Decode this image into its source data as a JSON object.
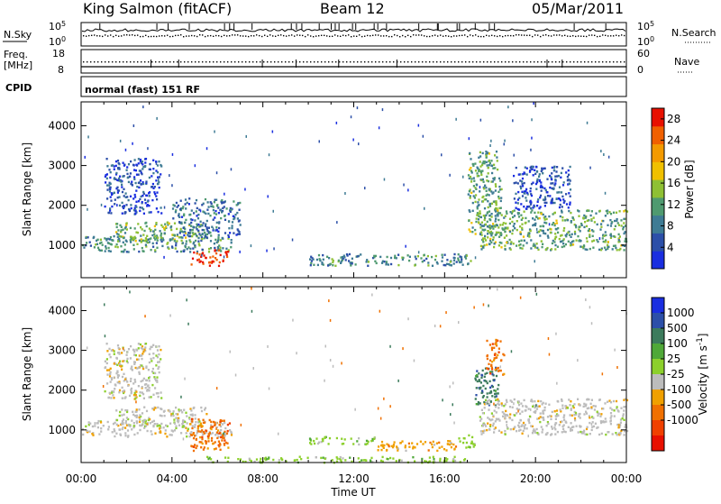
{
  "header": {
    "title": "King Salmon (fitACF)",
    "beam": "Beam 12",
    "date": "05/Mar/2011"
  },
  "strips": {
    "nsky_label": "N.Sky",
    "nsky_top": "10^5",
    "nsky_bottom": "10^0",
    "nsearch_label": "N.Search",
    "nsearch_top": "10^5",
    "nsearch_bottom": "10^0",
    "freq_label_1": "Freq.",
    "freq_label_2": "[MHz]",
    "freq_top": "18",
    "freq_bottom": "8",
    "nave_label": "Nave",
    "nave_top": "60",
    "nave_bottom": "0",
    "cpid_label": "CPID",
    "cpid_value": "normal (fast) 151 RF"
  },
  "colors": {
    "power": [
      "#1a2ee0",
      "#2c4fa8",
      "#3e7b94",
      "#4f9a70",
      "#8ec034",
      "#f0c000",
      "#f39a00",
      "#f06000",
      "#e81000"
    ],
    "velocity": [
      "#1a2ee0",
      "#2c4fa8",
      "#3c7b5c",
      "#4fa838",
      "#8cd02c",
      "#bcbcbc",
      "#f0a000",
      "#f07000",
      "#f04000",
      "#e81000"
    ]
  },
  "chart_data": [
    {
      "type": "heatmap",
      "name": "power",
      "ylabel": "Slant Range [km]",
      "ylim": [
        180,
        4600
      ],
      "yticks": [
        "1000",
        "2000",
        "3000",
        "4000"
      ],
      "ytick_values": [
        1000,
        2000,
        3000,
        4000
      ],
      "xlim_hours": [
        0,
        24
      ],
      "colorbar_label": "Power [dB]",
      "colorbar_ticks": [
        "4",
        "8",
        "12",
        "16",
        "20",
        "24",
        "28"
      ],
      "colorbar_tick_values": [
        4,
        8,
        12,
        16,
        20,
        24,
        28
      ],
      "colorbar_range": [
        0,
        30
      ],
      "regions": [
        {
          "t0": 0.0,
          "t1": 6.6,
          "r0": 850,
          "r1": 1250,
          "level": 0.35
        },
        {
          "t0": 1.5,
          "t1": 5.5,
          "r0": 1100,
          "r1": 1600,
          "level": 0.45
        },
        {
          "t0": 4.8,
          "t1": 6.5,
          "r0": 500,
          "r1": 900,
          "level": 0.95
        },
        {
          "t0": 4.0,
          "t1": 7.0,
          "r0": 1200,
          "r1": 2200,
          "level": 0.25
        },
        {
          "t0": 1.0,
          "t1": 3.5,
          "r0": 1800,
          "r1": 3200,
          "level": 0.15
        },
        {
          "t0": 10.0,
          "t1": 17.2,
          "r0": 500,
          "r1": 800,
          "level": 0.3
        },
        {
          "t0": 17.0,
          "t1": 18.5,
          "r0": 1200,
          "r1": 3400,
          "level": 0.4
        },
        {
          "t0": 17.5,
          "t1": 24.0,
          "r0": 900,
          "r1": 1900,
          "level": 0.4
        },
        {
          "t0": 19.0,
          "t1": 21.5,
          "r0": 1900,
          "r1": 3000,
          "level": 0.12
        }
      ]
    },
    {
      "type": "heatmap",
      "name": "velocity",
      "ylabel": "Slant Range [km]",
      "ylim": [
        180,
        4600
      ],
      "yticks": [
        "1000",
        "2000",
        "3000",
        "4000"
      ],
      "ytick_values": [
        1000,
        2000,
        3000,
        4000
      ],
      "xlim_hours": [
        0,
        24
      ],
      "xticks": [
        "00:00",
        "04:00",
        "08:00",
        "12:00",
        "16:00",
        "20:00",
        "00:00"
      ],
      "xtick_values": [
        0,
        4,
        8,
        12,
        16,
        20,
        24
      ],
      "xlabel": "Time UT",
      "colorbar_label": "Velocity [m s^-1]",
      "colorbar_ticks": [
        "1000",
        "500",
        "100",
        "25",
        "-25",
        "-100",
        "-500",
        "-1000"
      ],
      "regions": [
        {
          "t0": 0.0,
          "t1": 6.6,
          "r0": 850,
          "r1": 1250,
          "level": 5
        },
        {
          "t0": 1.5,
          "t1": 5.5,
          "r0": 1100,
          "r1": 1600,
          "level": 5
        },
        {
          "t0": 4.8,
          "t1": 6.5,
          "r0": 500,
          "r1": 1300,
          "level": 7
        },
        {
          "t0": 1.0,
          "t1": 3.5,
          "r0": 1800,
          "r1": 3200,
          "level": 5
        },
        {
          "t0": 10.0,
          "t1": 13.0,
          "r0": 650,
          "r1": 850,
          "level": 4
        },
        {
          "t0": 13.0,
          "t1": 16.5,
          "r0": 500,
          "r1": 750,
          "level": 6
        },
        {
          "t0": 16.5,
          "t1": 17.4,
          "r0": 550,
          "r1": 900,
          "level": 4
        },
        {
          "t0": 17.3,
          "t1": 18.4,
          "r0": 1600,
          "r1": 2600,
          "level": 2
        },
        {
          "t0": 17.8,
          "t1": 18.6,
          "r0": 2400,
          "r1": 3300,
          "level": 7
        },
        {
          "t0": 17.5,
          "t1": 24.0,
          "r0": 900,
          "r1": 1800,
          "level": 5
        },
        {
          "t0": 5.5,
          "t1": 17.0,
          "r0": 200,
          "r1": 350,
          "level": 4
        }
      ]
    }
  ]
}
